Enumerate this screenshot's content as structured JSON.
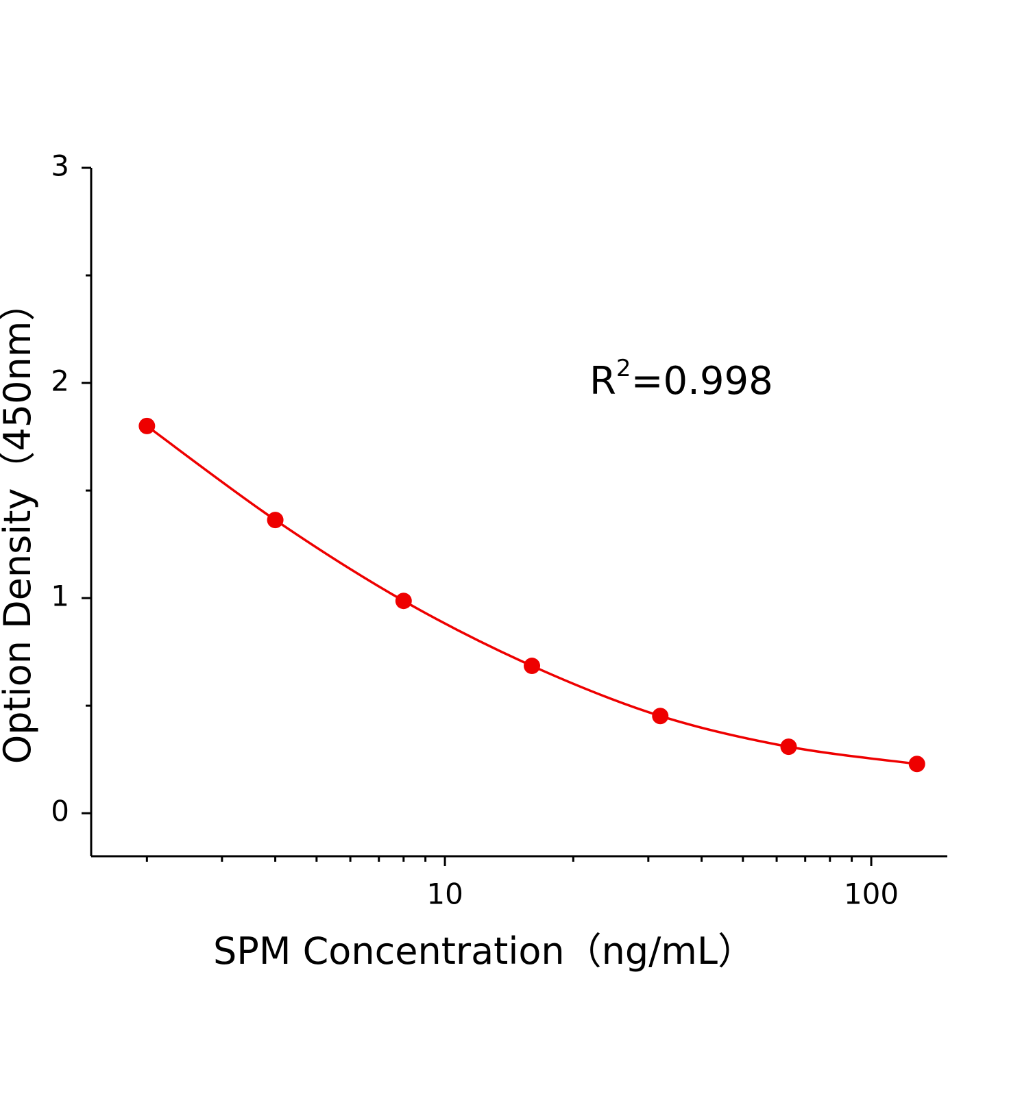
{
  "chart_data": {
    "type": "scatter",
    "x_label": "SPM Concentration（ng/mL）",
    "y_label": "Option Density（450nm）",
    "annotation": {
      "base": "R",
      "superscript": "2",
      "text": "=0.998"
    },
    "x_scale": "log",
    "x": [
      2,
      4,
      8,
      16,
      32,
      64,
      128
    ],
    "series": [
      {
        "color": "#ee0000",
        "values": [
          1.8,
          1.363,
          0.987,
          0.685,
          0.452,
          0.309,
          0.229
        ]
      }
    ],
    "xlim": [
      1.48,
      150.8
    ],
    "xticks": [
      10,
      100
    ],
    "xminorticks": [
      2,
      3,
      4,
      5,
      6,
      7,
      8,
      9,
      20,
      30,
      40,
      50,
      60,
      70,
      80,
      90
    ],
    "ylim": [
      -0.2,
      3
    ],
    "yticks": [
      0,
      1,
      2,
      3
    ],
    "yminorticks": [
      0.5,
      1.5,
      2.5
    ]
  }
}
